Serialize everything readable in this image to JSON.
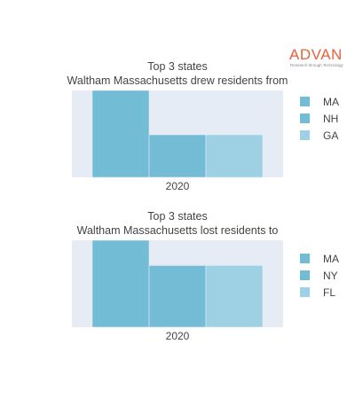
{
  "logo": {
    "name": "ADVAN",
    "tagline": "Research through Technology"
  },
  "colors": {
    "plot_background": "#e5ecf6",
    "series": [
      "#72bcd5",
      "#74bcd6",
      "#9ed1e3"
    ],
    "logo": "#e8603c"
  },
  "chart_data": [
    {
      "type": "bar",
      "title_line1": "Top 3 states",
      "title_line2": "Waltham Massachusetts drew residents from",
      "categories": [
        "2020"
      ],
      "series": [
        {
          "name": "MA",
          "values": [
            100
          ]
        },
        {
          "name": "NH",
          "values": [
            49
          ]
        },
        {
          "name": "GA",
          "values": [
            49
          ]
        }
      ],
      "ylim": [
        0,
        100
      ],
      "legend_position": "right",
      "grid": false
    },
    {
      "type": "bar",
      "title_line1": "Top 3 states",
      "title_line2": "Waltham Massachusetts lost residents to",
      "categories": [
        "2020"
      ],
      "series": [
        {
          "name": "MA",
          "values": [
            100
          ]
        },
        {
          "name": "NY",
          "values": [
            71
          ]
        },
        {
          "name": "FL",
          "values": [
            71
          ]
        }
      ],
      "ylim": [
        0,
        100
      ],
      "legend_position": "right",
      "grid": false
    }
  ]
}
